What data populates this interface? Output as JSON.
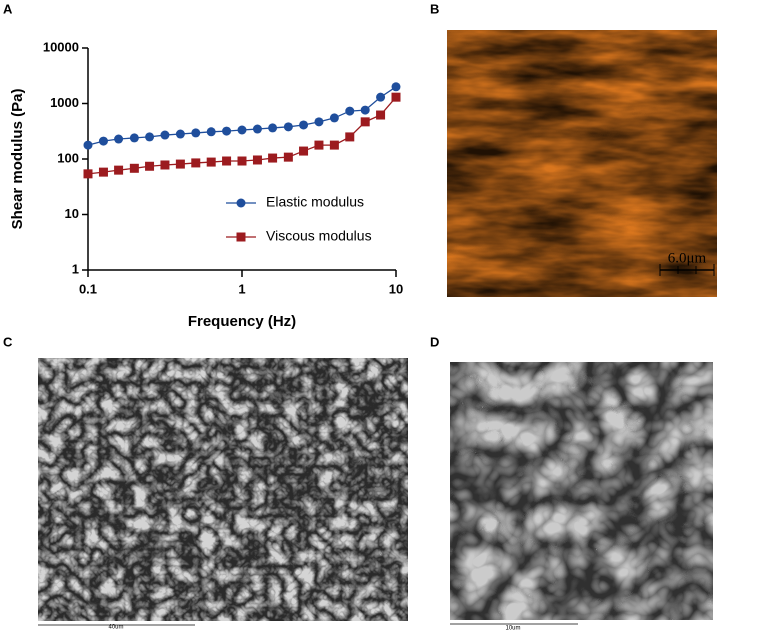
{
  "panels": [
    "A",
    "B",
    "C",
    "D"
  ],
  "chart_data": {
    "type": "line",
    "xlabel": "Frequency (Hz)",
    "ylabel": "Shear modulus (Pa)",
    "xscale": "log",
    "yscale": "log",
    "xlim": [
      0.1,
      10
    ],
    "ylim": [
      1,
      10000
    ],
    "xticks": [
      0.1,
      1,
      10
    ],
    "yticks": [
      1,
      10,
      100,
      1000,
      10000
    ],
    "legend": "right",
    "x": [
      0.1,
      0.126,
      0.158,
      0.2,
      0.251,
      0.316,
      0.398,
      0.501,
      0.631,
      0.794,
      1,
      1.26,
      1.58,
      2,
      2.51,
      3.16,
      3.98,
      5.01,
      6.31,
      7.94,
      10
    ],
    "series": [
      {
        "name": "Elastic modulus",
        "color": "#1f4e9c",
        "marker": "circle",
        "values": [
          178,
          210,
          229,
          240,
          250,
          270,
          282,
          295,
          309,
          318,
          333,
          347,
          363,
          380,
          410,
          467,
          550,
          730,
          760,
          1300,
          2000
        ]
      },
      {
        "name": "Viscous modulus",
        "color": "#9c1b1f",
        "marker": "square",
        "values": [
          54,
          58,
          63,
          68,
          74,
          78,
          81,
          85,
          88,
          92,
          92,
          96,
          104,
          108,
          139,
          178,
          178,
          250,
          467,
          620,
          1300
        ]
      }
    ]
  },
  "images": {
    "b_scale": "6.0μm",
    "c_scale": "40um",
    "d_scale": "10um"
  }
}
